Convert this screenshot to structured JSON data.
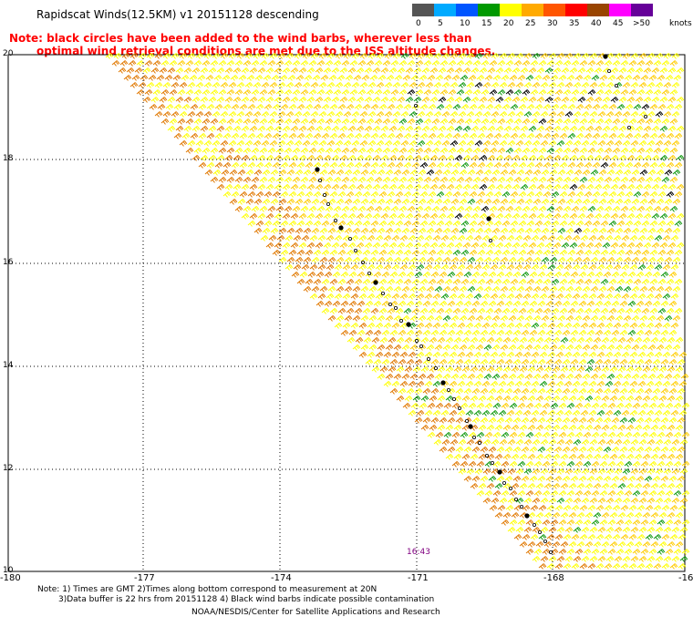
{
  "title": "Rapidscat Winds(12.5KM) v1 20151128 descending",
  "note_line1": "Note: black circles have been added to the wind barbs, wherever less than",
  "note_line2": "optimal wind retrieval conditions are met due to the ISS altitude changes.",
  "legend": {
    "unit": "knots",
    "items": [
      {
        "label": "0",
        "color": "#555555"
      },
      {
        "label": "5",
        "color": "#00aaff"
      },
      {
        "label": "10",
        "color": "#0055ff"
      },
      {
        "label": "15",
        "color": "#009900"
      },
      {
        "label": "20",
        "color": "#ffff00"
      },
      {
        "label": "25",
        "color": "#ffaa00"
      },
      {
        "label": "30",
        "color": "#ff5500"
      },
      {
        "label": "35",
        "color": "#ff0000"
      },
      {
        "label": "40",
        "color": "#994400"
      },
      {
        "label": "45",
        "color": "#ff00ff"
      },
      {
        "label": ">50",
        "color": "#660099"
      }
    ]
  },
  "lat_labels": [
    "20",
    "18",
    "16",
    "14",
    "12",
    "10"
  ],
  "lon_labels": [
    "-180",
    "-177",
    "-174",
    "-171",
    "-168",
    "-16"
  ],
  "time_label": "16:43",
  "footnote_line1": "Note: 1) Times are GMT 2)Times along bottom correspond to measurement at 20N",
  "footnote_line2": "3)Data buffer is 22 hrs from 20151128 4) Black wind barbs indicate possible contamination",
  "credit": "NOAA/NESDIS/Center for Satellite Applications and Research",
  "barb_colors": {
    "light": "#ffff00",
    "medium": "#ffcc00",
    "strong": "#e07800",
    "weak": "#119911",
    "flagged": "#000000"
  }
}
